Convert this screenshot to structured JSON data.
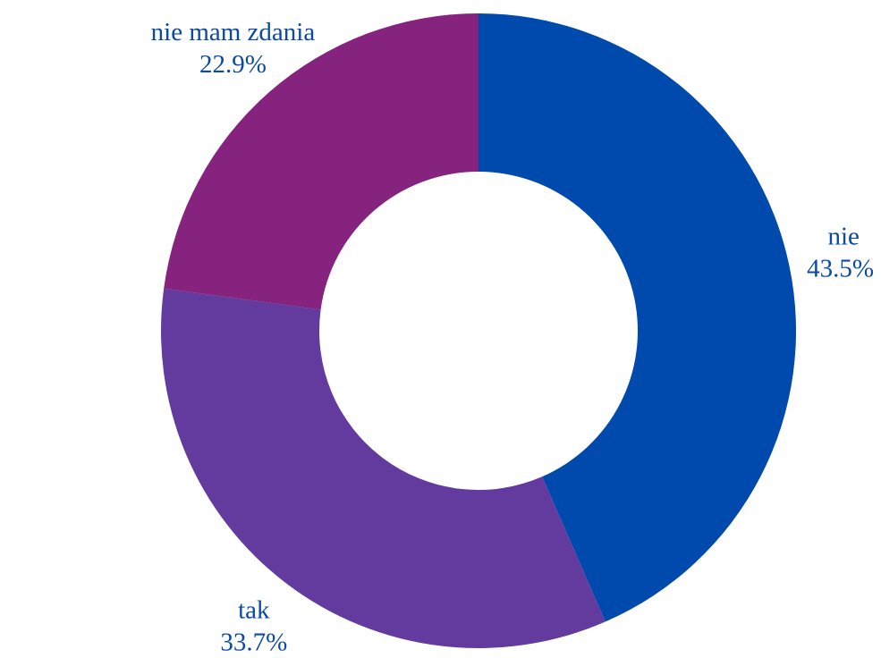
{
  "chart_data": {
    "type": "donut",
    "categories": [
      "nie",
      "tak",
      "nie mam zdania"
    ],
    "values": [
      43.5,
      33.7,
      22.9
    ],
    "value_labels": [
      "43.5%",
      "33.7%",
      "22.9%"
    ],
    "colors": [
      "#004aad",
      "#633a9e",
      "#86237f"
    ]
  }
}
